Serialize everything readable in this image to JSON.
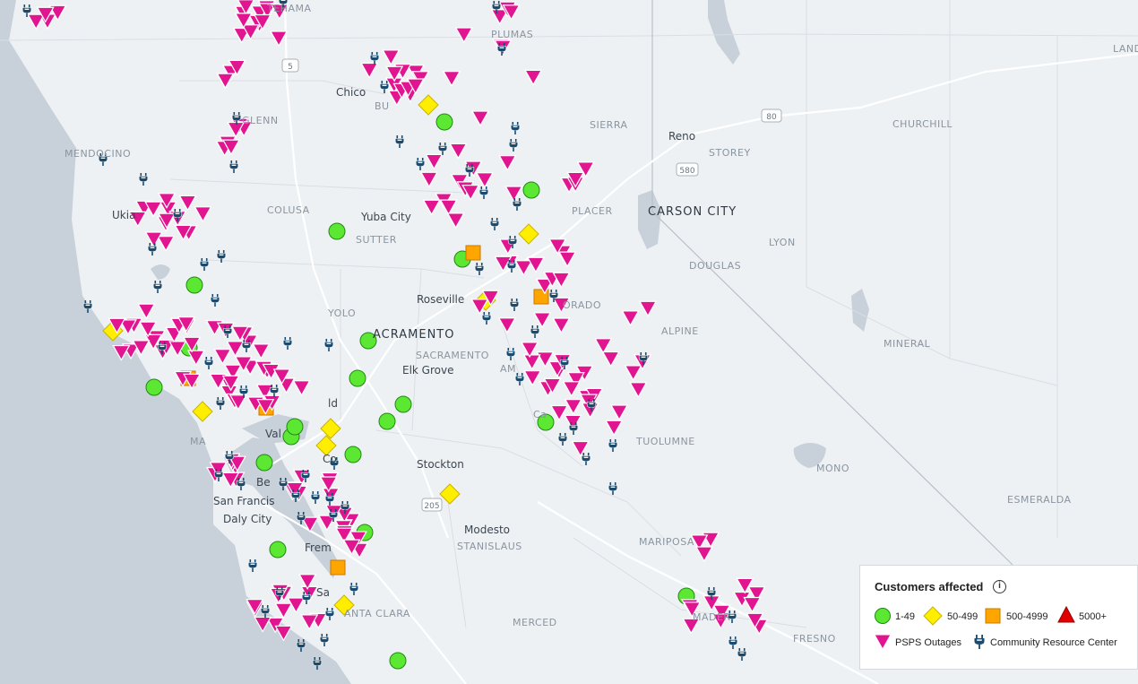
{
  "places": {
    "tehama": "TEHAMA",
    "plumas": "PLUMAS",
    "lander": "LANDER",
    "chico": "Chico",
    "butte": "BU",
    "glenn": "GLENN",
    "sierra": "SIERRA",
    "churchill": "CHURCHILL",
    "reno": "Reno",
    "storey": "STOREY",
    "mendocino": "MENDOCINO",
    "colusa": "COLUSA",
    "yuba_city": "Yuba City",
    "sutter": "SUTTER",
    "ukiah": "Ukia",
    "placer": "PLACER",
    "carson_city": "CARSON CITY",
    "lyon": "LYON",
    "douglas": "DOUGLAS",
    "roseville": "Roseville",
    "eldorado": "ORADO",
    "yolo": "YOLO",
    "sacramento_city": "ACRAMENTO",
    "alpine": "ALPINE",
    "mineral": "MINERAL",
    "sacramento_county": "SACRAMENTO",
    "elk_grove": "Elk Grove",
    "amador": "AM",
    "fairfield": "ld",
    "vallejo": "Val",
    "tuolumne": "TUOLUMNE",
    "mono": "MONO",
    "stockton": "Stockton",
    "san_francisco": "San Francis",
    "berkeley": "Be",
    "daly_city": "Daly City",
    "concord": "Co",
    "esmeralda": "ESMERALDA",
    "modesto": "Modesto",
    "stanislaus": "STANISLAUS",
    "mariposa": "MARIPOSA",
    "fremont": "Frem",
    "san_jose": "Sa",
    "santa_clara": "ANTA CLARA",
    "madera": "MADER",
    "merced": "MERCED",
    "fresno": "FRESNO",
    "calaveras": "Ca",
    "marin": "MA"
  },
  "highways": [
    "5",
    "80",
    "580",
    "205"
  ],
  "legend": {
    "title": "Customers affected",
    "info_icon": "i",
    "cat_1": "1-49",
    "cat_2": "50-499",
    "cat_3": "500-4999",
    "cat_4": "5000+",
    "psps": "PSPS Outages",
    "crc": "Community Resource Center"
  },
  "colors": {
    "water": "#c8d0d9",
    "land": "#eef1f4",
    "psps": "#e0158f",
    "cat_1": "#5ce832",
    "cat_2": "#ffee00",
    "cat_3": "#ffa500",
    "cat_4": "#e00000",
    "crc": "#1a4a6e"
  }
}
